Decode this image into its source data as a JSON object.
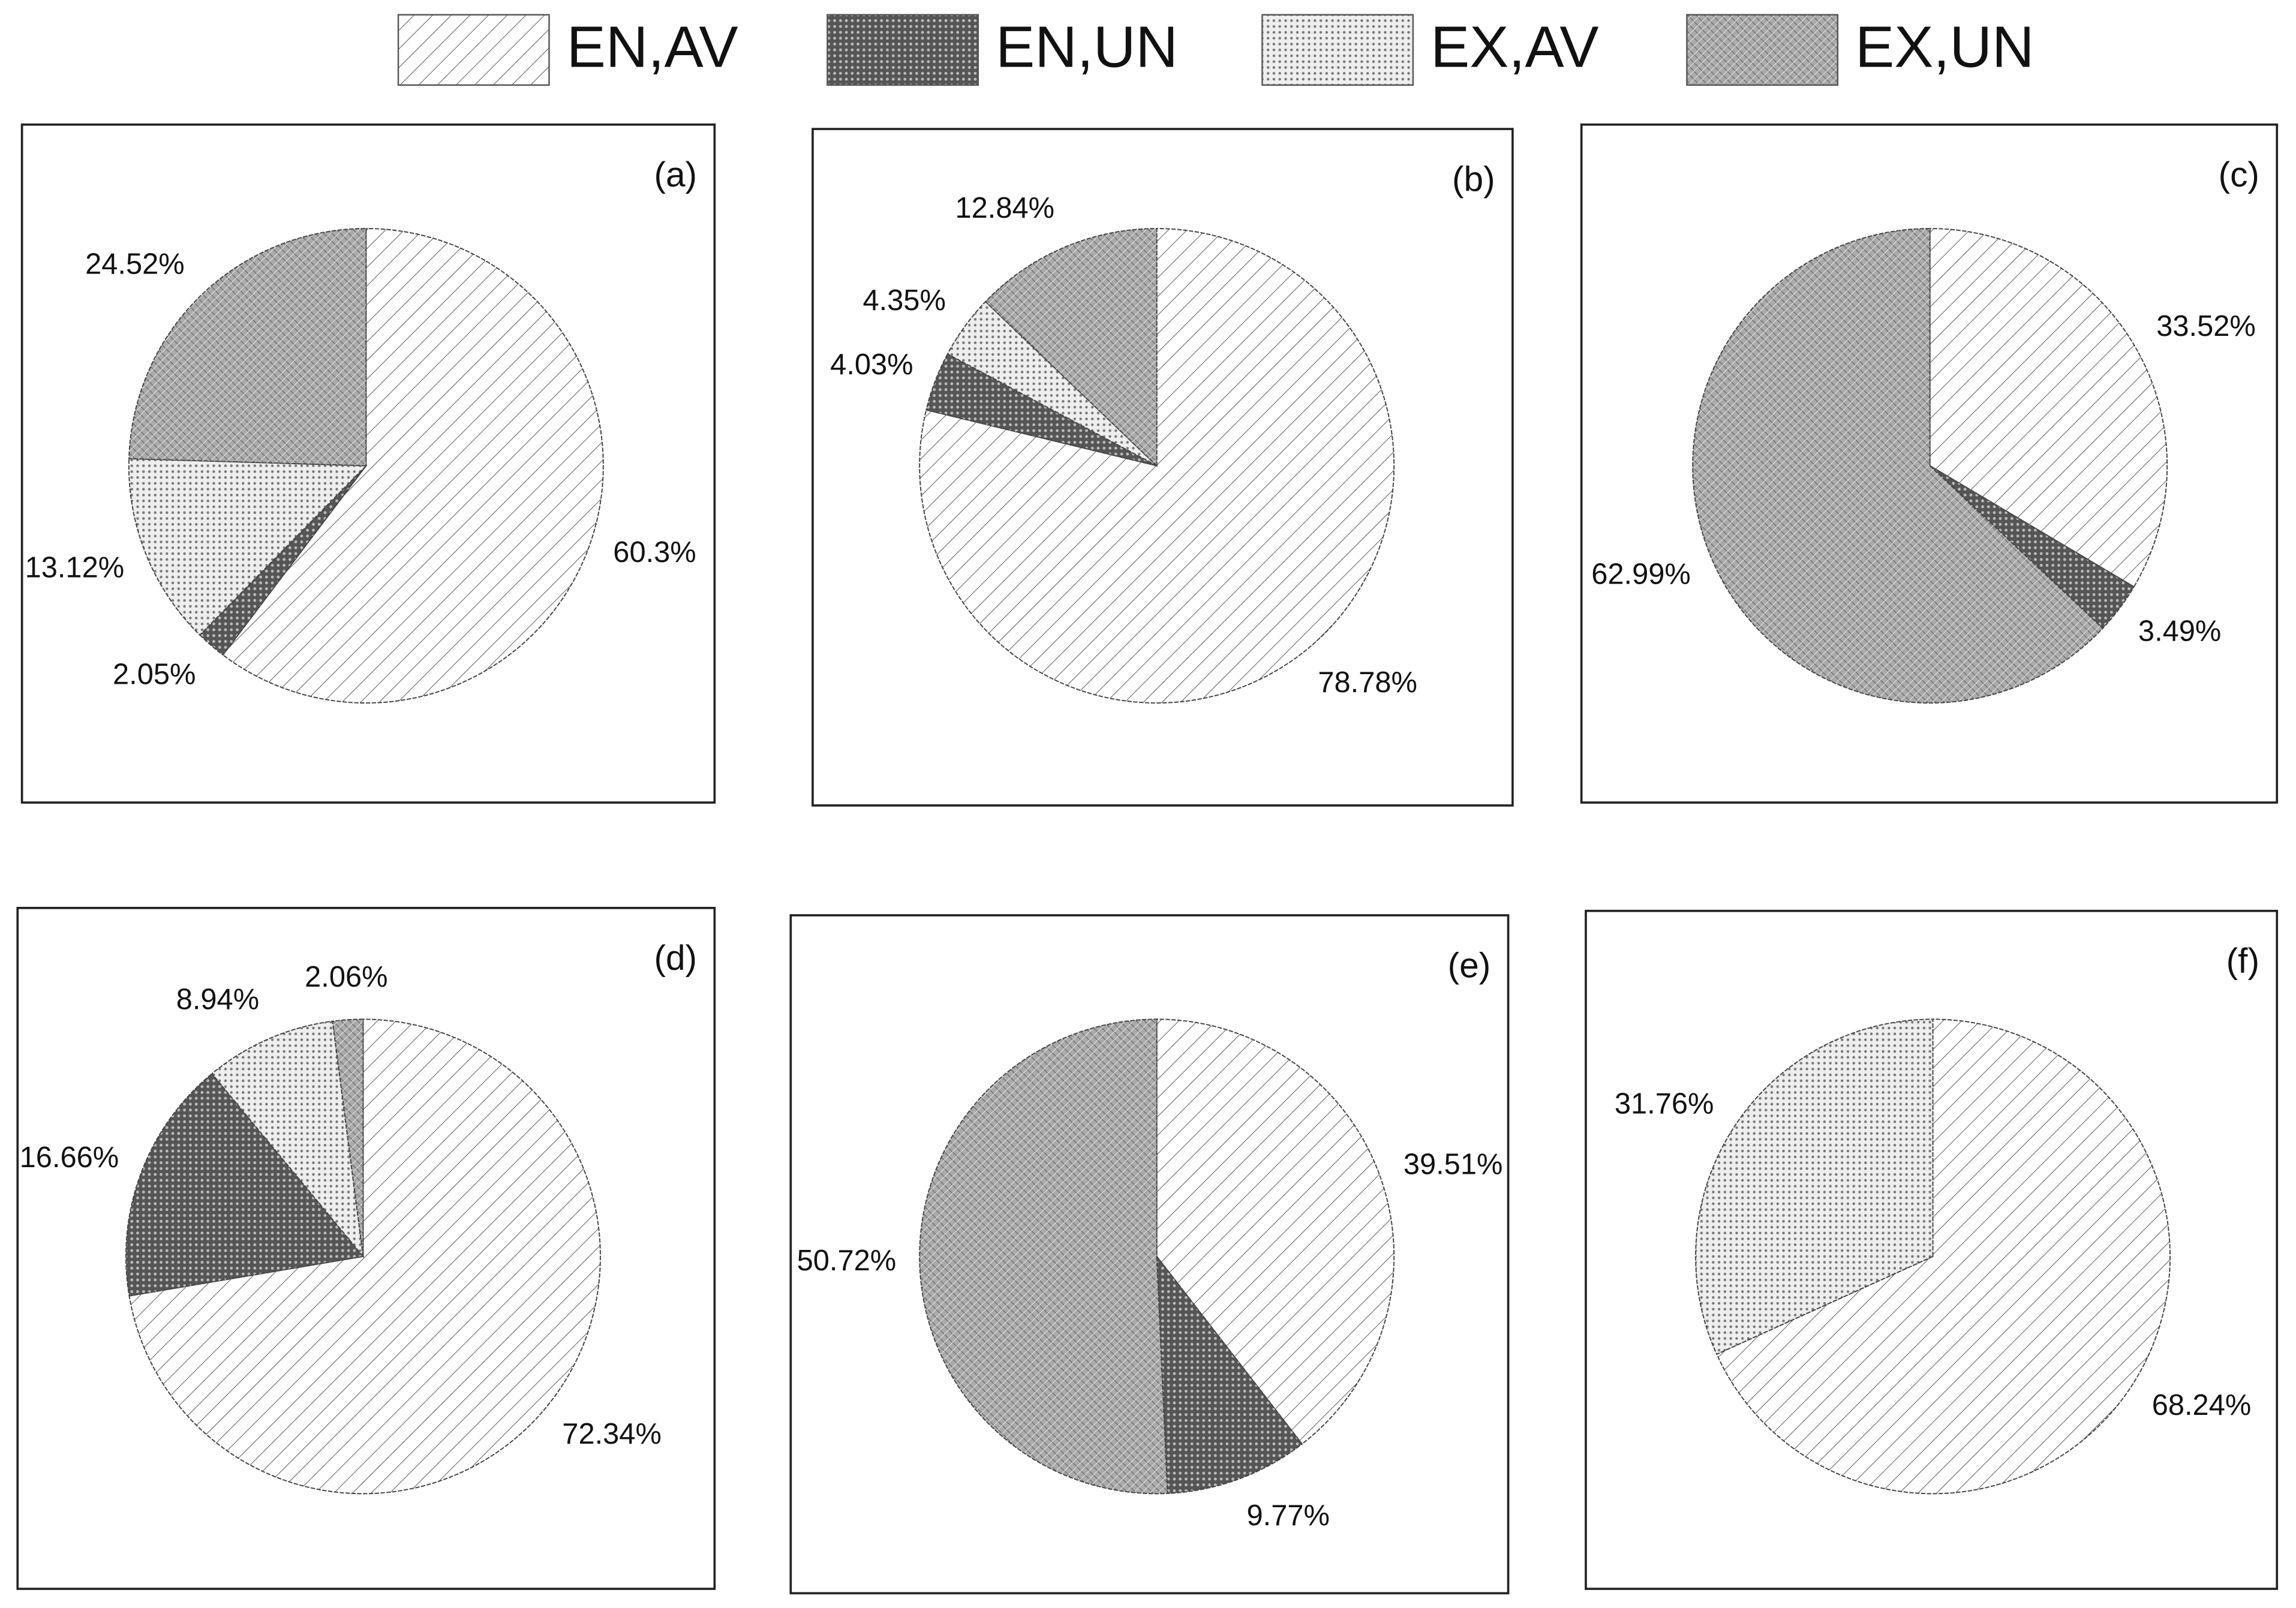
{
  "legend": [
    "EN,AV",
    "EN,UN",
    "EX,AV",
    "EX,UN"
  ],
  "chart_data": [
    {
      "type": "pie",
      "title": "(a)",
      "values": [
        60.3,
        2.05,
        13.12,
        24.52
      ],
      "value_labels": [
        "60.3%",
        "2.05%",
        "13.12%",
        "24.52%"
      ]
    },
    {
      "type": "pie",
      "title": "(b)",
      "values": [
        78.78,
        4.03,
        4.35,
        12.84
      ],
      "value_labels": [
        "78.78%",
        "4.03%",
        "4.35%",
        "12.84%"
      ]
    },
    {
      "type": "pie",
      "title": "(c)",
      "values": [
        33.52,
        3.49,
        null,
        62.99
      ],
      "value_labels": [
        "33.52%",
        "3.49%",
        null,
        "62.99%"
      ]
    },
    {
      "type": "pie",
      "title": "(d)",
      "values": [
        72.34,
        16.66,
        8.94,
        2.06
      ],
      "value_labels": [
        "72.34%",
        "16.66%",
        "8.94%",
        "2.06%"
      ]
    },
    {
      "type": "pie",
      "title": "(e)",
      "values": [
        39.51,
        9.77,
        null,
        50.72
      ],
      "value_labels": [
        "39.51%",
        "9.77%",
        null,
        "50.72%"
      ]
    },
    {
      "type": "pie",
      "title": "(f)",
      "values": [
        68.24,
        null,
        31.76,
        null
      ],
      "value_labels": [
        "68.24%",
        null,
        "31.76%",
        null
      ]
    }
  ]
}
